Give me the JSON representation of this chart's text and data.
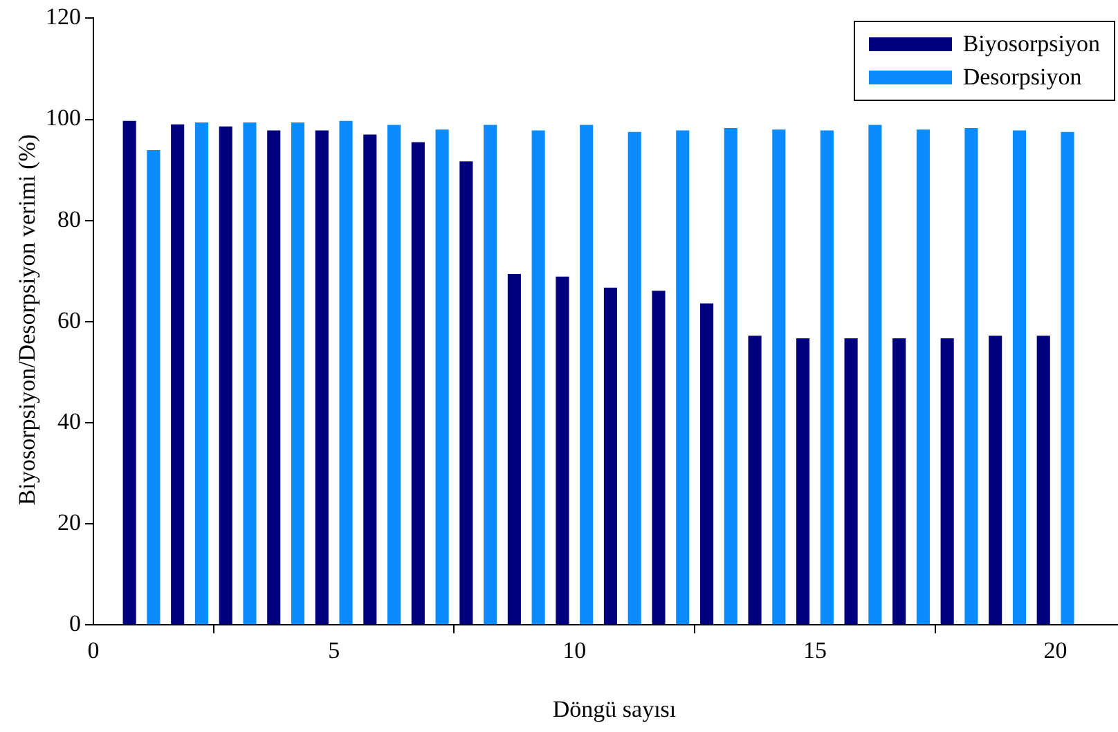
{
  "chart_data": {
    "type": "bar",
    "xlabel": "Döngü sayısı",
    "ylabel": "Biyosorpsiyon/Desorpsiyon verimi (%)",
    "x": [
      1,
      2,
      3,
      4,
      5,
      6,
      7,
      8,
      9,
      10,
      11,
      12,
      13,
      14,
      15,
      16,
      17,
      18,
      19,
      20
    ],
    "series": [
      {
        "name": "Biyosorpsiyon",
        "color": "#00007f",
        "values": [
          99.7,
          99,
          98.6,
          97.8,
          97.8,
          97,
          95.5,
          91.7,
          69.4,
          68.9,
          66.7,
          66.1,
          63.6,
          57.2,
          56.7,
          56.7,
          56.7,
          56.7,
          57.2,
          57.2
        ]
      },
      {
        "name": "Desorpsiyon",
        "color": "#0a8cff",
        "values": [
          93.9,
          99.4,
          99.4,
          99.4,
          99.7,
          98.9,
          98,
          98.9,
          97.8,
          98.9,
          97.5,
          97.8,
          98.3,
          98,
          97.8,
          98.9,
          98,
          98.3,
          97.8,
          97.5
        ]
      }
    ],
    "xlim": [
      0,
      21.3
    ],
    "xticks": [
      0,
      5,
      10,
      15,
      20
    ],
    "ylim": [
      0,
      120
    ],
    "yticks": [
      0,
      20,
      40,
      60,
      80,
      100,
      120
    ],
    "grid": false,
    "legend": "top right"
  }
}
